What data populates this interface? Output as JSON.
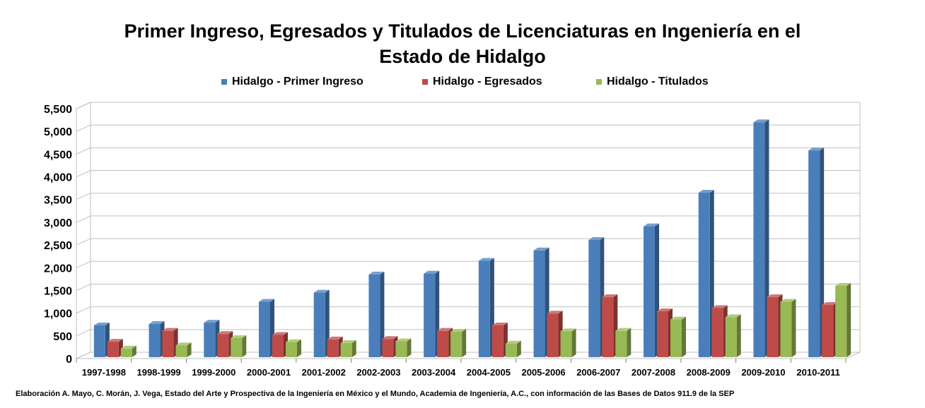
{
  "colors": {
    "primer_ingreso": "#4a7ebb",
    "egresados": "#be4b48",
    "titulados": "#98b954"
  },
  "chart_data": {
    "type": "bar",
    "title": "Primer Ingreso, Egresados y Titulados de Licenciaturas en Ingeniería en el Estado de Hidalgo",
    "title_lines": [
      "Primer Ingreso, Egresados y Titulados de Licenciaturas en Ingeniería en el",
      "Estado de Hidalgo"
    ],
    "xlabel": "",
    "ylabel": "",
    "ylim": [
      0,
      5500
    ],
    "y_ticks": [
      "0",
      "500",
      "1,000",
      "1,500",
      "2,000",
      "2,500",
      "3,000",
      "3,500",
      "4,000",
      "4,500",
      "5,000",
      "5,500"
    ],
    "grid": true,
    "legend_position": "top",
    "categories": [
      "1997-1998",
      "1998-1999",
      "1999-2000",
      "2000-2001",
      "2001-2002",
      "2002-2003",
      "2003-2004",
      "2004-2005",
      "2005-2006",
      "2006-2007",
      "2007-2008",
      "2008-2009",
      "2009-2010",
      "2010-2011"
    ],
    "series": [
      {
        "name": "Hidalgo - Primer Ingreso",
        "color_key": "primer_ingreso",
        "values": [
          700,
          730,
          760,
          1220,
          1420,
          1820,
          1840,
          2120,
          2350,
          2580,
          2880,
          3620,
          5170,
          4550
        ]
      },
      {
        "name": "Hidalgo - Egresados",
        "color_key": "egresados",
        "values": [
          340,
          580,
          510,
          490,
          390,
          400,
          580,
          700,
          960,
          1320,
          1010,
          1080,
          1320,
          1150
        ]
      },
      {
        "name": "Hidalgo - Titulados",
        "color_key": "titulados",
        "values": [
          190,
          260,
          420,
          330,
          310,
          350,
          560,
          300,
          570,
          580,
          830,
          880,
          1220,
          1570
        ]
      }
    ]
  },
  "footnote": "Elaboración A. Mayo, C. Morán, J. Vega, Estado del Arte y Prospectiva de la Ingeniería en México y el Mundo, Academia de Ingeniería, A.C., con información de las Bases de Datos  911.9  de la SEP"
}
